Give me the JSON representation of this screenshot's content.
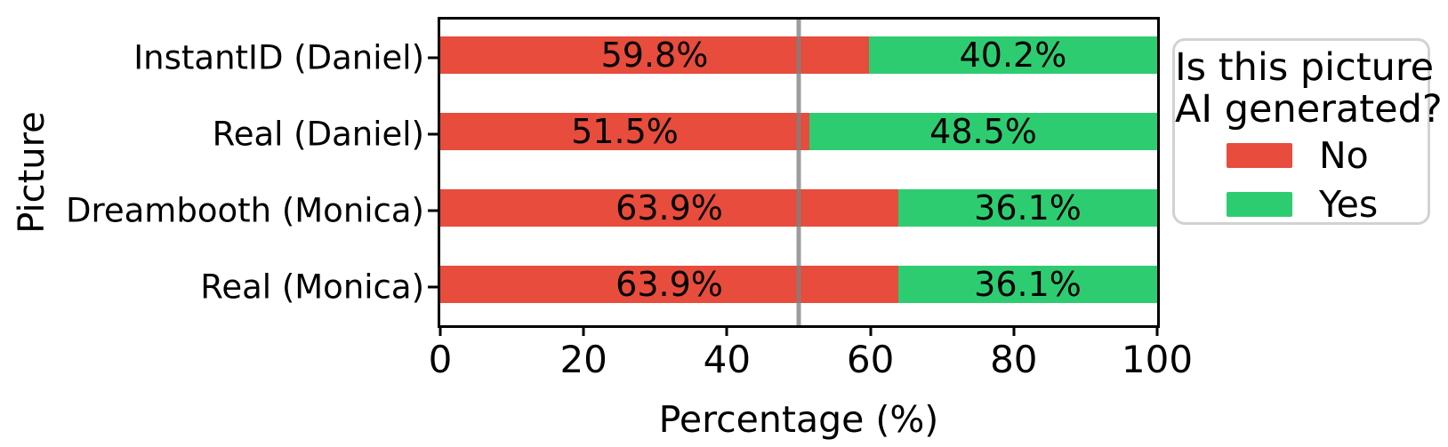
{
  "chart_data": {
    "type": "bar",
    "orientation": "horizontal",
    "stacked": true,
    "title": "",
    "xlabel": "Percentage (%)",
    "ylabel": "Picture",
    "xlim": [
      0,
      100
    ],
    "x_ticks": [
      "0",
      "20",
      "40",
      "60",
      "80",
      "100"
    ],
    "grid": false,
    "reference_line_x": 50,
    "categories": [
      "InstantID (Daniel)",
      "Real (Daniel)",
      "Dreambooth (Monica)",
      "Real (Monica)"
    ],
    "series": [
      {
        "name": "No",
        "color": "#e74c3c",
        "values": [
          59.8,
          51.5,
          63.9,
          63.9
        ]
      },
      {
        "name": "Yes",
        "color": "#2ecc71",
        "values": [
          40.2,
          48.5,
          36.1,
          36.1
        ]
      }
    ],
    "bar_labels": {
      "no": [
        "59.8%",
        "51.5%",
        "63.9%",
        "63.9%"
      ],
      "yes": [
        "40.2%",
        "48.5%",
        "36.1%",
        "36.1%"
      ]
    },
    "legend": {
      "position": "right",
      "title_line1": "Is this picture",
      "title_line2": "AI generated?",
      "items": [
        {
          "label": "No",
          "color": "#e74c3c"
        },
        {
          "label": "Yes",
          "color": "#2ecc71"
        }
      ]
    },
    "colors": {
      "no": "#e74c3c",
      "yes": "#2ecc71",
      "reference_line": "#828282",
      "axis": "#000000",
      "legend_border": "#d2d2d2"
    }
  }
}
